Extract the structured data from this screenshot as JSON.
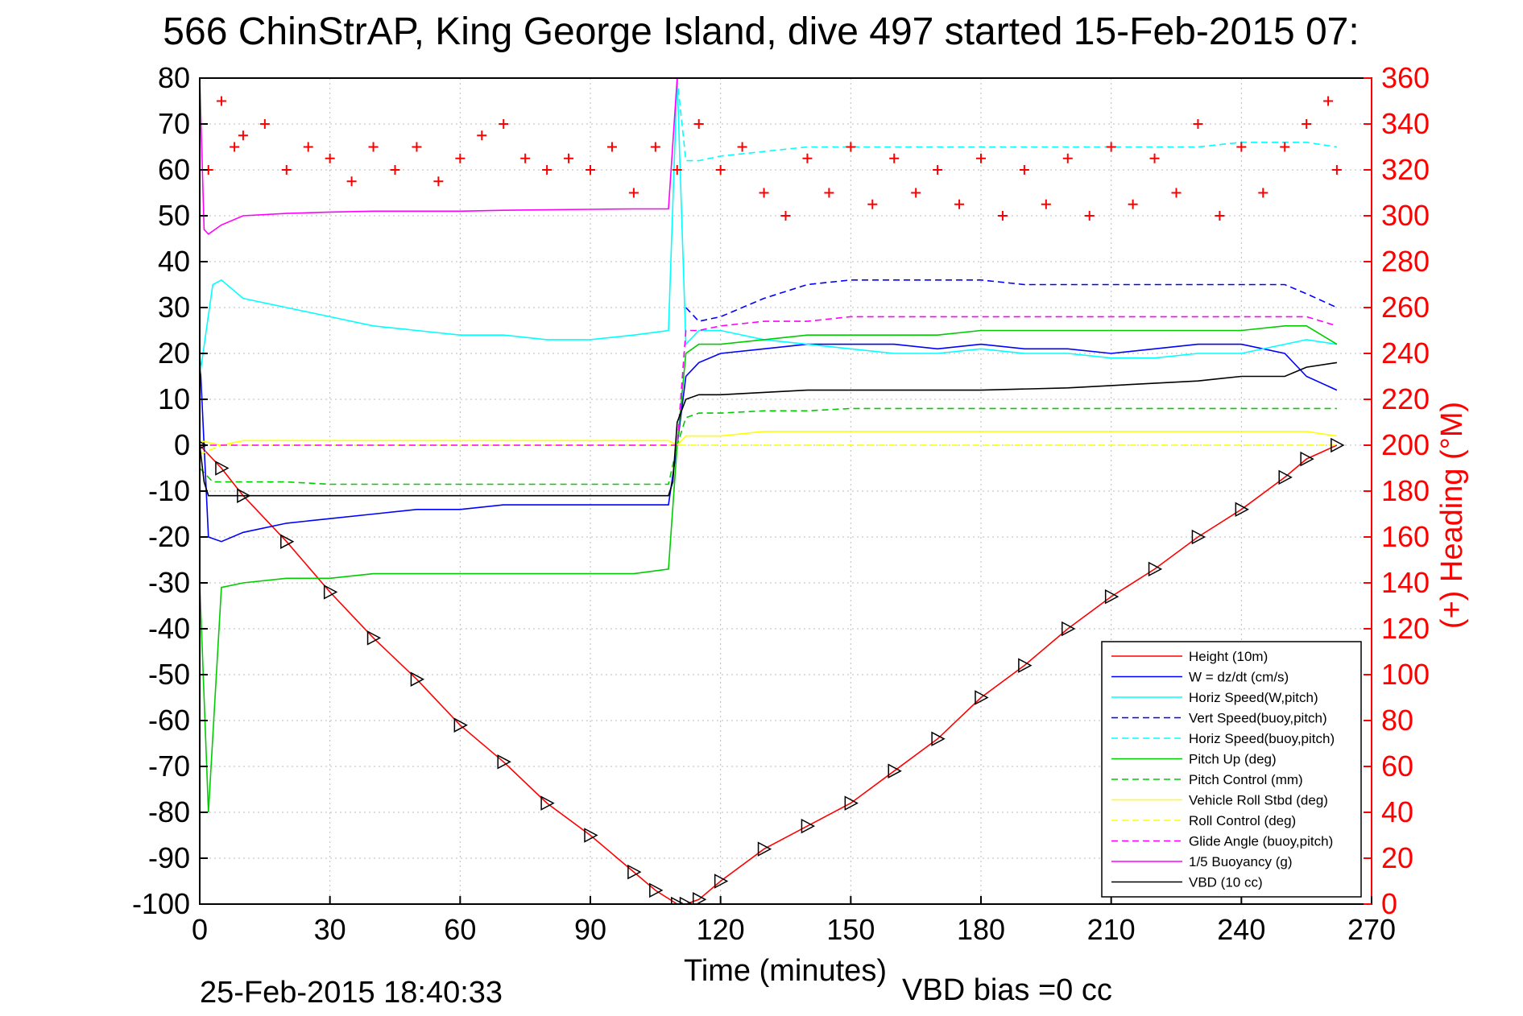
{
  "figure": {
    "title": "566 ChinStrAP, King George Island, dive 497 started 15-Feb-2015 07:",
    "timestamp": "25-Feb-2015 18:40:33",
    "vbd_bias": "VBD bias =0 cc"
  },
  "chart_data": {
    "type": "line",
    "xlabel": "Time (minutes)",
    "ylabel": "",
    "y2label": "(+) Heading (°M)",
    "xlim": [
      0,
      270
    ],
    "ylim": [
      -100,
      80
    ],
    "y2lim": [
      0,
      360
    ],
    "xticks": [
      "0",
      "30",
      "60",
      "90",
      "120",
      "150",
      "180",
      "210",
      "240",
      "270"
    ],
    "yticks": [
      "80",
      "70",
      "60",
      "50",
      "40",
      "30",
      "20",
      "10",
      "0",
      "-10",
      "-20",
      "-30",
      "-40",
      "-50",
      "-60",
      "-70",
      "-80",
      "-90",
      "-100"
    ],
    "y2ticks": [
      "360",
      "340",
      "320",
      "300",
      "280",
      "260",
      "240",
      "220",
      "200",
      "180",
      "160",
      "140",
      "120",
      "100",
      "80",
      "60",
      "40",
      "20",
      "0"
    ],
    "grid": true,
    "legend_position": "bottom-right",
    "colors": {
      "left_axis": "#000000",
      "right_axis": "#ff0000"
    },
    "series": [
      {
        "name": "Height (10m)",
        "color": "#ff0000",
        "dash": "solid",
        "x": [
          0,
          5,
          10,
          20,
          30,
          40,
          50,
          60,
          70,
          80,
          90,
          100,
          105,
          110,
          112,
          115,
          120,
          130,
          140,
          150,
          160,
          170,
          180,
          190,
          200,
          210,
          220,
          230,
          240,
          250,
          255,
          262
        ],
        "y": [
          0,
          -5,
          -11,
          -21,
          -32,
          -42,
          -51,
          -61,
          -69,
          -78,
          -85,
          -93,
          -97,
          -100,
          -100,
          -99,
          -95,
          -88,
          -83,
          -78,
          -71,
          -64,
          -55,
          -48,
          -40,
          -33,
          -27,
          -20,
          -14,
          -7,
          -3,
          0
        ]
      },
      {
        "name": "W = dz/dt (cm/s)",
        "color": "#0000ff",
        "dash": "solid",
        "x": [
          0,
          2,
          5,
          10,
          20,
          30,
          40,
          50,
          60,
          70,
          80,
          90,
          100,
          108,
          110,
          112,
          115,
          120,
          130,
          140,
          150,
          160,
          170,
          180,
          190,
          200,
          210,
          220,
          230,
          240,
          250,
          255,
          262
        ],
        "y": [
          20,
          -20,
          -21,
          -19,
          -17,
          -16,
          -15,
          -14,
          -14,
          -13,
          -13,
          -13,
          -13,
          -13,
          0,
          15,
          18,
          20,
          21,
          22,
          22,
          22,
          21,
          22,
          21,
          21,
          20,
          21,
          22,
          22,
          20,
          15,
          12
        ]
      },
      {
        "name": "Horiz Speed(W,pitch)",
        "color": "#00ffff",
        "dash": "solid",
        "x": [
          0,
          3,
          5,
          10,
          20,
          30,
          40,
          50,
          60,
          70,
          80,
          90,
          100,
          108,
          110,
          112,
          115,
          120,
          130,
          140,
          150,
          160,
          170,
          180,
          190,
          200,
          210,
          220,
          230,
          240,
          250,
          255,
          262
        ],
        "y": [
          15,
          35,
          36,
          32,
          30,
          28,
          26,
          25,
          24,
          24,
          23,
          23,
          24,
          25,
          80,
          22,
          25,
          25,
          23,
          22,
          21,
          20,
          20,
          21,
          20,
          20,
          19,
          19,
          20,
          20,
          22,
          23,
          22
        ]
      },
      {
        "name": "Vert Speed(buoy,pitch)",
        "color": "#0000ff",
        "dash": "dashed",
        "x": [
          112,
          115,
          120,
          130,
          140,
          150,
          160,
          170,
          180,
          190,
          200,
          210,
          220,
          230,
          240,
          250,
          255,
          262
        ],
        "y": [
          30,
          27,
          28,
          32,
          35,
          36,
          36,
          36,
          36,
          35,
          35,
          35,
          35,
          35,
          35,
          35,
          33,
          30
        ]
      },
      {
        "name": "Horiz Speed(buoy,pitch)",
        "color": "#00ffff",
        "dash": "dashed",
        "x": [
          110,
          112,
          115,
          120,
          130,
          140,
          150,
          160,
          170,
          180,
          190,
          200,
          210,
          220,
          230,
          240,
          250,
          255,
          262
        ],
        "y": [
          80,
          62,
          62,
          63,
          64,
          65,
          65,
          65,
          65,
          65,
          65,
          65,
          65,
          65,
          65,
          66,
          66,
          66,
          65
        ]
      },
      {
        "name": "Pitch Up (deg)",
        "color": "#00cc00",
        "dash": "solid",
        "x": [
          0,
          2,
          5,
          10,
          20,
          30,
          40,
          50,
          60,
          70,
          80,
          90,
          100,
          108,
          110,
          112,
          115,
          120,
          130,
          140,
          150,
          160,
          170,
          180,
          190,
          200,
          210,
          220,
          230,
          240,
          250,
          255,
          262
        ],
        "y": [
          -30,
          -80,
          -31,
          -30,
          -29,
          -29,
          -28,
          -28,
          -28,
          -28,
          -28,
          -28,
          -28,
          -27,
          0,
          20,
          22,
          22,
          23,
          24,
          24,
          24,
          24,
          25,
          25,
          25,
          25,
          25,
          25,
          25,
          26,
          26,
          22
        ]
      },
      {
        "name": "Pitch Control (mm)",
        "color": "#00cc00",
        "dash": "dashed",
        "x": [
          0,
          3,
          5,
          10,
          20,
          30,
          40,
          50,
          60,
          70,
          80,
          90,
          100,
          108,
          110,
          112,
          115,
          120,
          130,
          140,
          150,
          160,
          170,
          180,
          190,
          200,
          210,
          220,
          230,
          240,
          250,
          255,
          262
        ],
        "y": [
          -5,
          -8,
          -8,
          -8,
          -8,
          -8.5,
          -8.5,
          -8.5,
          -8.5,
          -8.5,
          -8.5,
          -8.5,
          -8.5,
          -8.5,
          0,
          6,
          7,
          7,
          7.5,
          7.5,
          8,
          8,
          8,
          8,
          8,
          8,
          8,
          8,
          8,
          8,
          8,
          8,
          8
        ]
      },
      {
        "name": "Vehicle Roll Stbd (deg)",
        "color": "#ffff00",
        "dash": "solid",
        "x": [
          0,
          5,
          10,
          20,
          30,
          40,
          50,
          60,
          70,
          80,
          90,
          100,
          108,
          110,
          112,
          115,
          120,
          130,
          140,
          150,
          160,
          170,
          180,
          190,
          200,
          210,
          220,
          230,
          240,
          250,
          255,
          262
        ],
        "y": [
          1,
          0,
          1,
          1,
          1,
          1,
          1,
          1,
          1,
          1,
          1,
          1,
          1,
          0,
          2,
          2,
          2,
          3,
          3,
          3,
          3,
          3,
          3,
          3,
          3,
          3,
          3,
          3,
          3,
          3,
          3,
          2
        ]
      },
      {
        "name": "Roll Control (deg)",
        "color": "#ffff00",
        "dash": "dashed",
        "x": [
          0,
          5,
          10,
          20,
          30,
          40,
          50,
          60,
          70,
          80,
          90,
          100,
          108,
          110,
          112,
          115,
          120,
          130,
          140,
          150,
          160,
          170,
          180,
          190,
          200,
          210,
          220,
          230,
          240,
          250,
          255,
          262
        ],
        "y": [
          -2,
          0,
          0,
          0,
          0,
          0,
          0,
          0,
          0,
          0,
          0,
          0,
          0,
          0,
          0,
          0,
          0,
          0,
          0,
          0,
          0,
          0,
          0,
          0,
          0,
          0,
          0,
          0,
          0,
          0,
          0,
          0
        ]
      },
      {
        "name": "Glide Angle (buoy,pitch)",
        "color": "#ff00ff",
        "dash": "dashed",
        "x": [
          0,
          5,
          10,
          20,
          30,
          40,
          50,
          60,
          70,
          80,
          90,
          100,
          108,
          110,
          112,
          115,
          120,
          130,
          140,
          150,
          160,
          170,
          180,
          190,
          200,
          210,
          220,
          230,
          240,
          250,
          255,
          262
        ],
        "y": [
          0,
          0,
          0,
          0,
          0,
          0,
          0,
          0,
          0,
          0,
          0,
          0,
          0,
          0,
          25,
          25,
          26,
          27,
          27,
          28,
          28,
          28,
          28,
          28,
          28,
          28,
          28,
          28,
          28,
          28,
          28,
          26
        ]
      },
      {
        "name": "1/5 Buoyancy (g)",
        "color": "#ff00ff",
        "dash": "solid",
        "x": [
          0,
          1,
          2,
          5,
          10,
          20,
          30,
          40,
          50,
          60,
          70,
          80,
          90,
          100,
          108,
          110,
          111
        ],
        "y": [
          80,
          47,
          46,
          48,
          50,
          50.5,
          50.8,
          51,
          51,
          51,
          51.2,
          51.3,
          51.4,
          51.5,
          51.5,
          80,
          80
        ]
      },
      {
        "name": "VBD (10 cc)",
        "color": "#000000",
        "dash": "solid",
        "x": [
          0,
          1,
          2,
          5,
          10,
          30,
          60,
          90,
          108,
          109,
          110,
          112,
          115,
          120,
          140,
          160,
          180,
          200,
          210,
          230,
          240,
          250,
          255,
          262
        ],
        "y": [
          0,
          -8,
          -11,
          -11,
          -11,
          -11,
          -11,
          -11,
          -11,
          -8,
          5,
          10,
          11,
          11,
          12,
          12,
          12,
          12.5,
          13,
          14,
          15,
          15,
          17,
          18
        ]
      },
      {
        "name": "",
        "color": "#ff0000",
        "axis": "right",
        "marker": "+",
        "x": [
          2,
          5,
          8,
          10,
          15,
          20,
          25,
          30,
          35,
          40,
          45,
          50,
          55,
          60,
          65,
          70,
          75,
          80,
          85,
          90,
          95,
          100,
          105,
          110,
          115,
          120,
          125,
          130,
          135,
          140,
          145,
          150,
          155,
          160,
          165,
          170,
          175,
          180,
          185,
          190,
          195,
          200,
          205,
          210,
          215,
          220,
          225,
          230,
          235,
          240,
          245,
          250,
          255,
          260,
          262
        ],
        "y": [
          320,
          350,
          330,
          335,
          340,
          320,
          330,
          325,
          315,
          330,
          320,
          330,
          315,
          325,
          335,
          340,
          325,
          320,
          325,
          320,
          330,
          310,
          330,
          320,
          340,
          320,
          330,
          310,
          300,
          325,
          310,
          330,
          305,
          325,
          310,
          320,
          305,
          325,
          300,
          320,
          305,
          325,
          300,
          330,
          305,
          325,
          310,
          340,
          300,
          330,
          310,
          330,
          340,
          350,
          320
        ]
      }
    ]
  }
}
